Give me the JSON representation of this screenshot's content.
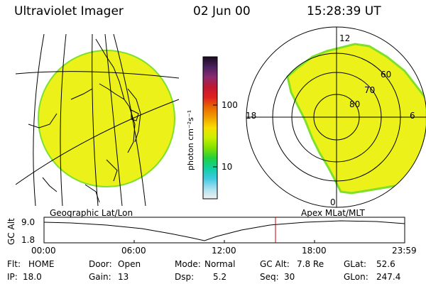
{
  "header": {
    "instrument": "Ultraviolet Imager",
    "date": "02 Jun 00",
    "time": "15:28:39 UT"
  },
  "colorbar": {
    "unit_label": "photon cm⁻²s⁻¹",
    "ticks": [
      "100",
      "10"
    ],
    "gradient": [
      "#1a0b1e",
      "#4a2060",
      "#8c2a70",
      "#c01830",
      "#e02020",
      "#e86a00",
      "#f2a000",
      "#f7e000",
      "#c8f000",
      "#7fe000",
      "#20d040",
      "#10d0a0",
      "#40c8e0",
      "#a8e0ef",
      "#f2f2f2"
    ]
  },
  "polar": {
    "mlt_labels": [
      "12",
      "18",
      "6",
      "0"
    ],
    "lat_labels": [
      "60",
      "70",
      "80"
    ]
  },
  "panels": {
    "left_caption": "Geographic Lat/Lon",
    "right_caption": "Apex MLat/MLT"
  },
  "timeline": {
    "ylabel": "GC Alt",
    "y_ticks": [
      "9.0",
      "1.8"
    ],
    "x_ticks": [
      "00:00",
      "06:00",
      "12:00",
      "18:00",
      "23:59"
    ],
    "marker_time": "15:28:39"
  },
  "footer": {
    "row1": [
      {
        "key": "Flt:",
        "value": "HOME"
      },
      {
        "key": "Door:",
        "value": "Open"
      },
      {
        "key": "Mode:",
        "value": "Normal"
      },
      {
        "key": "GC Alt:",
        "value": "7.8 Re"
      },
      {
        "key": "GLat:",
        "value": "52.6"
      }
    ],
    "row2": [
      {
        "key": "IP:",
        "value": "18.0"
      },
      {
        "key": "Gain:",
        "value": "13"
      },
      {
        "key": "Dsp:",
        "value": "5.2"
      },
      {
        "key": "Seq:",
        "value": "30"
      },
      {
        "key": "GLon:",
        "value": "247.4"
      }
    ]
  },
  "colors": {
    "auroral_fill": "#ecf219",
    "auroral_edge": "#7fe02a",
    "marker": "#cc0000"
  }
}
